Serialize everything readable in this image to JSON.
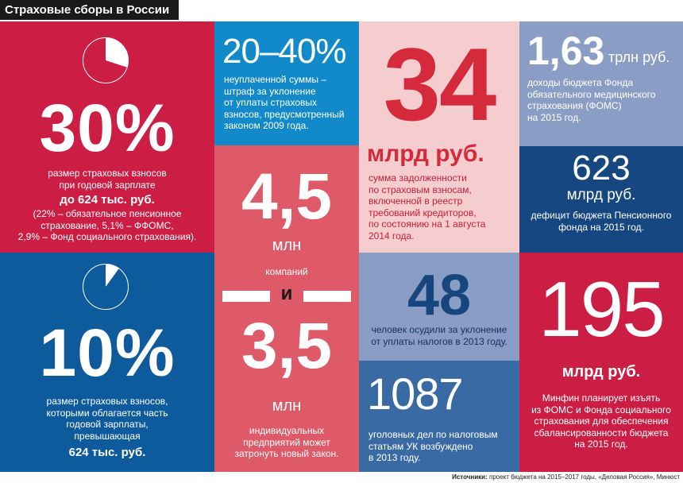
{
  "title": "Страховые сборы в России",
  "block_30": {
    "value": "30%",
    "pie_share": 0.3,
    "line1": "размер страховых взносов",
    "line2": "при годовой зарплате",
    "bold": "до 624 тыс. руб.",
    "detail1": "(22% – обязательное пенсионное",
    "detail2": "страхование, 5,1% – ФФОМС,",
    "detail3": "2,9% – Фонд социального страхования)."
  },
  "block_10": {
    "value": "10%",
    "pie_share": 0.1,
    "line1": "размер страховых взносов,",
    "line2": "которыми облагается часть",
    "line3": "годовой зарплаты,",
    "line4": "превышающая",
    "bold": "624 тыс. руб."
  },
  "block_2040": {
    "value": "20–40%",
    "line1": "неуплаченной суммы –",
    "line2": "штраф за уклонение",
    "line3": "от уплаты страховых",
    "line4": "взносов, предусмотренный",
    "line5": "законом 2009 года."
  },
  "block_45": {
    "value": "4,5",
    "unit": "млн",
    "caption": "компаний"
  },
  "connector": "и",
  "block_35": {
    "value": "3,5",
    "unit": "млн",
    "line1": "индивидуальных",
    "line2": "предприятий может",
    "line3": "затронуть новый закон."
  },
  "block_34": {
    "value": "34",
    "unit": "млрд руб.",
    "line1": "сумма задолженности",
    "line2": "по страховым взносам,",
    "line3": "включенной в реестр",
    "line4": "требований кредиторов,",
    "line5": "по состоянию на 1 августа",
    "line6": "2014 года."
  },
  "block_48": {
    "value": "48",
    "line1": "человек осудили за уклонение",
    "line2": "от уплаты налогов в 2013 году."
  },
  "block_1087": {
    "value": "1087",
    "line1": "уголовных дел по налоговым",
    "line2": "статьям УК возбуждено",
    "line3": "в 2013 году."
  },
  "block_163": {
    "value": "1,63",
    "unit": "трлн руб.",
    "line1": "доходы бюджета Фонда",
    "line2": "обязательного медицинского",
    "line3": "страхования (ФОМС)",
    "line4": "на 2015 год."
  },
  "block_623": {
    "value": "623",
    "unit": "млрд руб.",
    "line1": "дефицит бюджета Пенсионного",
    "line2": "фонда на 2015 год."
  },
  "block_195": {
    "value": "195",
    "unit": "млрд руб.",
    "line1": "Минфин планирует изъять",
    "line2": "из ФОМС и Фонда социального",
    "line3": "страхования для обеспечения",
    "line4": "сбалансированности бюджета",
    "line5": "на 2015 год."
  },
  "sources": {
    "label": "Источники:",
    "text": "проект бюджета на 2015–2017 годы, «Деловая Россия», Минюст"
  },
  "colors": {
    "red": "#cc1e44",
    "blue": "#0d5a9c",
    "navy": "#174780",
    "cyan": "#1289c9",
    "rose": "#df5a68",
    "pink": "#f5cdce",
    "lavender": "#8a9dc5",
    "mid_blue": "#3a6aa3",
    "number_red": "#d42a3c",
    "number_navy": "#17467e"
  }
}
